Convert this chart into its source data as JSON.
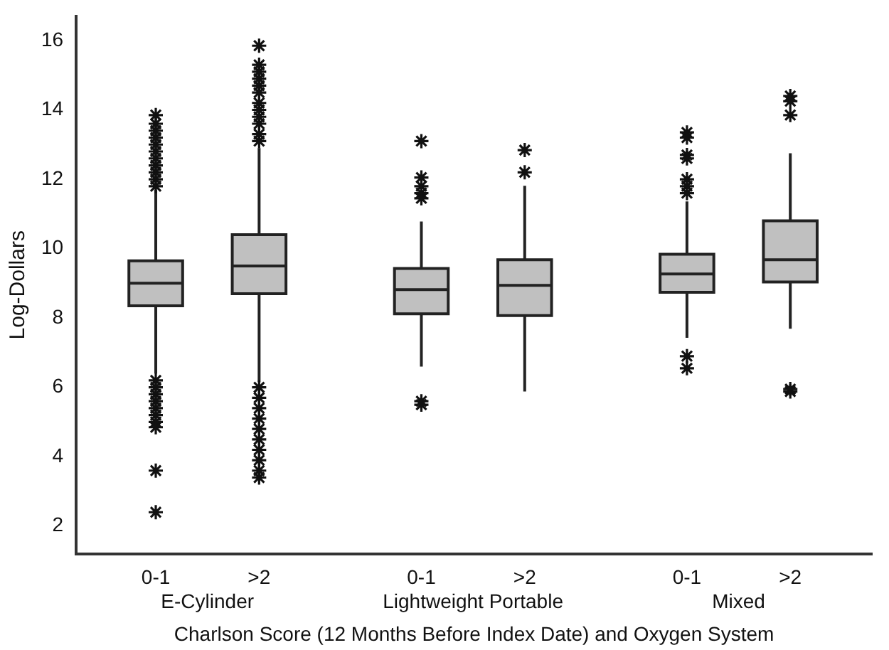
{
  "chart_data": {
    "type": "box",
    "xlabel": "Charlson Score (12 Months Before Index Date) and Oxygen System",
    "ylabel": "Log-Dollars",
    "categories": [
      "0-1",
      ">2",
      "0-1",
      ">2",
      "0-1",
      ">2"
    ],
    "annotations": [
      "E-Cylinder",
      "Lightweight Portable",
      "Mixed"
    ],
    "boxes": [
      {
        "low": 6.4,
        "q1": 8.35,
        "median": 9.0,
        "q3": 9.65,
        "high": 11.7,
        "outliers": [
          11.8,
          12.0,
          12.2,
          12.4,
          12.6,
          12.8,
          13.0,
          13.2,
          13.4,
          13.6,
          13.85,
          6.2,
          6.0,
          5.8,
          5.6,
          5.4,
          5.2,
          5.0,
          4.85,
          3.6,
          2.4
        ]
      },
      {
        "low": 6.15,
        "q1": 8.7,
        "median": 9.5,
        "q3": 10.4,
        "high": 12.9,
        "outliers": [
          13.1,
          13.3,
          13.6,
          13.8,
          14.0,
          14.2,
          14.5,
          14.7,
          14.9,
          15.1,
          15.3,
          15.85,
          6.0,
          5.7,
          5.4,
          5.1,
          4.8,
          4.5,
          4.2,
          3.9,
          3.6,
          3.4
        ]
      },
      {
        "low": 6.6,
        "q1": 8.12,
        "median": 8.82,
        "q3": 9.43,
        "high": 10.78,
        "outliers": [
          13.1,
          12.05,
          11.8,
          11.6,
          11.45,
          5.6,
          5.5
        ]
      },
      {
        "low": 5.88,
        "q1": 8.07,
        "median": 8.94,
        "q3": 9.68,
        "high": 11.81,
        "outliers": [
          12.84,
          12.2
        ]
      },
      {
        "low": 7.43,
        "q1": 8.74,
        "median": 9.27,
        "q3": 9.84,
        "high": 11.36,
        "outliers": [
          13.35,
          13.2,
          12.7,
          12.6,
          12.0,
          11.8,
          11.6,
          6.9,
          6.55
        ]
      },
      {
        "low": 7.69,
        "q1": 9.04,
        "median": 9.68,
        "q3": 10.8,
        "high": 12.75,
        "outliers": [
          14.4,
          14.25,
          13.85,
          5.95,
          5.88
        ]
      }
    ],
    "color": "#c0c0c0",
    "ylim": [
      1.2,
      16.7
    ],
    "yticks": [
      2,
      4,
      6,
      8,
      10,
      12,
      14,
      16
    ],
    "grid": false,
    "legend": false,
    "marker": "star"
  }
}
